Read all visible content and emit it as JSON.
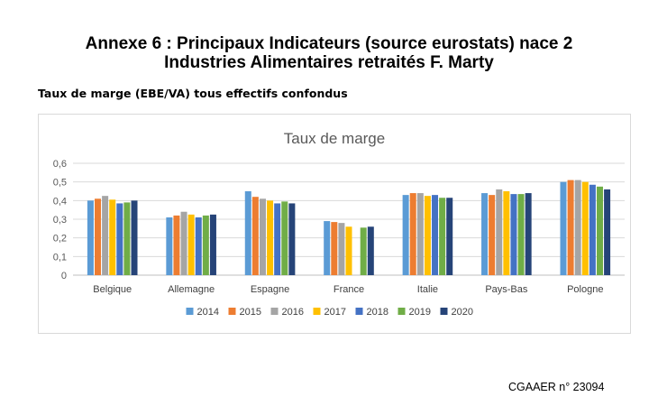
{
  "header": {
    "title_line1": "Annexe 6 :  Principaux Indicateurs (source eurostats) nace 2",
    "title_line2": "Industries Alimentaires retraités F. Marty"
  },
  "subtitle": "Taux de marge (EBE/VA) tous effectifs confondus",
  "footer": "CGAAER n° 23094",
  "chart_data": {
    "type": "bar",
    "title": "Taux de marge",
    "categories": [
      "Belgique",
      "Allemagne",
      "Espagne",
      "France",
      "Italie",
      "Pays-Bas",
      "Pologne"
    ],
    "series": [
      {
        "name": "2014",
        "color": "#5b9bd5",
        "values": [
          0.4,
          0.31,
          0.45,
          0.29,
          0.43,
          0.44,
          0.5
        ]
      },
      {
        "name": "2015",
        "color": "#ed7d31",
        "values": [
          0.41,
          0.32,
          0.42,
          0.285,
          0.44,
          0.43,
          0.51
        ]
      },
      {
        "name": "2016",
        "color": "#a5a5a5",
        "values": [
          0.425,
          0.34,
          0.41,
          0.28,
          0.44,
          0.46,
          0.51
        ]
      },
      {
        "name": "2017",
        "color": "#ffc000",
        "values": [
          0.405,
          0.325,
          0.4,
          0.26,
          0.425,
          0.45,
          0.5
        ]
      },
      {
        "name": "2018",
        "color": "#4472c4",
        "values": [
          0.385,
          0.31,
          0.385,
          null,
          0.43,
          0.435,
          0.485
        ]
      },
      {
        "name": "2019",
        "color": "#70ad47",
        "values": [
          0.39,
          0.32,
          0.395,
          0.255,
          0.415,
          0.435,
          0.475
        ]
      },
      {
        "name": "2020",
        "color": "#264478",
        "values": [
          0.4,
          0.325,
          0.385,
          0.26,
          0.415,
          0.44,
          0.46
        ]
      }
    ],
    "yticks": [
      "0",
      "0,1",
      "0,2",
      "0,3",
      "0,4",
      "0,5",
      "0,6"
    ],
    "ylim": [
      0,
      0.6
    ],
    "grid": true,
    "legend": "bottom"
  }
}
